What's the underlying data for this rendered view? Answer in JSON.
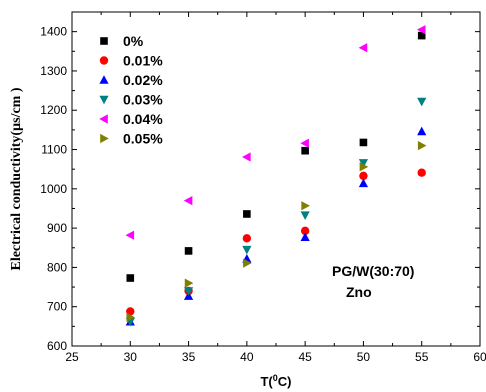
{
  "chart_data": {
    "type": "scatter",
    "title": "",
    "xlabel_main": "T(",
    "xlabel_sup": "0",
    "xlabel_tail": "C)",
    "ylabel": "Electrical conductivity(µs/cm )",
    "xlim": [
      25,
      60
    ],
    "ylim": [
      600,
      1450
    ],
    "xticks": [
      25,
      30,
      35,
      40,
      45,
      50,
      55,
      60
    ],
    "yticks": [
      600,
      700,
      800,
      900,
      1000,
      1100,
      1200,
      1300,
      1400
    ],
    "xtick_labels": [
      "25",
      "30",
      "35",
      "40",
      "45",
      "50",
      "55",
      "60"
    ],
    "ytick_labels": [
      "600",
      "700",
      "800",
      "900",
      "1000",
      "1100",
      "1200",
      "1300",
      "1400"
    ],
    "legend_position": "top-left",
    "grid": false,
    "annotations": [
      "PG/W(30:70)",
      "Zno"
    ],
    "series": [
      {
        "name": "0%",
        "marker": "square",
        "color": "#000000",
        "x": [
          30,
          35,
          40,
          45,
          50,
          55
        ],
        "y": [
          773,
          842,
          936,
          1097,
          1118,
          1390
        ]
      },
      {
        "name": "0.01%",
        "marker": "circle",
        "color": "#ff0000",
        "x": [
          30,
          35,
          40,
          45,
          50,
          55
        ],
        "y": [
          688,
          740,
          874,
          893,
          1033,
          1041
        ]
      },
      {
        "name": "0.02%",
        "marker": "triangle-up",
        "color": "#0000ff",
        "x": [
          30,
          35,
          40,
          45,
          50,
          55
        ],
        "y": [
          662,
          727,
          822,
          877,
          1014,
          1146
        ]
      },
      {
        "name": "0.03%",
        "marker": "triangle-down",
        "color": "#008080",
        "x": [
          30,
          35,
          40,
          45,
          50,
          55
        ],
        "y": [
          662,
          740,
          845,
          933,
          1066,
          1222
        ]
      },
      {
        "name": "0.04%",
        "marker": "triangle-left",
        "color": "#ff00ff",
        "x": [
          30,
          35,
          40,
          45,
          50,
          55
        ],
        "y": [
          882,
          970,
          1081,
          1116,
          1359,
          1405
        ]
      },
      {
        "name": "0.05%",
        "marker": "triangle-right",
        "color": "#808000",
        "x": [
          30,
          35,
          40,
          45,
          50,
          55
        ],
        "y": [
          673,
          760,
          811,
          957,
          1056,
          1110
        ]
      }
    ]
  }
}
